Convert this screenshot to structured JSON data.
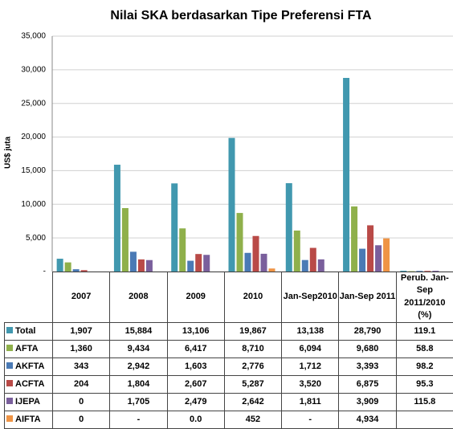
{
  "chart_data": {
    "type": "bar",
    "title": "Nilai SKA berdasarkan Tipe Preferensi FTA",
    "y_label": "US$ juta",
    "categories": [
      "2007",
      "2008",
      "2009",
      "2010",
      "Jan-Sep2010",
      "Jan-Sep 2011",
      "Perub. Jan-Sep 2011/2010 (%)"
    ],
    "series": [
      {
        "name": "Total",
        "color": "#4198af",
        "values": [
          1907,
          15884,
          13106,
          19867,
          13138,
          28790,
          119.1
        ],
        "value_labels": [
          "1,907",
          "15,884",
          "13,106",
          "19,867",
          "13,138",
          "28,790",
          "119.1"
        ]
      },
      {
        "name": "AFTA",
        "color": "#8fb04b",
        "values": [
          1360,
          9434,
          6417,
          8710,
          6094,
          9680,
          58.8
        ],
        "value_labels": [
          "1,360",
          "9,434",
          "6,417",
          "8,710",
          "6,094",
          "9,680",
          "58.8"
        ]
      },
      {
        "name": "AKFTA",
        "color": "#4a7ab5",
        "values": [
          343,
          2942,
          1603,
          2776,
          1712,
          3393,
          98.2
        ],
        "value_labels": [
          "343",
          "2,942",
          "1,603",
          "2,776",
          "1,712",
          "3,393",
          "98.2"
        ]
      },
      {
        "name": "ACFTA",
        "color": "#b94a47",
        "values": [
          204,
          1804,
          2607,
          5287,
          3520,
          6875,
          95.3
        ],
        "value_labels": [
          "204",
          "1,804",
          "2,607",
          "5,287",
          "3,520",
          "6,875",
          "95.3"
        ]
      },
      {
        "name": "IJEPA",
        "color": "#7a5f9c",
        "values": [
          0,
          1705,
          2479,
          2642,
          1811,
          3909,
          115.8
        ],
        "value_labels": [
          "0",
          "1,705",
          "2,479",
          "2,642",
          "1,811",
          "3,909",
          "115.8"
        ]
      },
      {
        "name": "AIFTA",
        "color": "#ef9445",
        "values": [
          0,
          null,
          0,
          452,
          null,
          4934,
          null
        ],
        "value_labels": [
          "0",
          "-",
          "0.0",
          "452",
          "-",
          "4,934",
          null
        ]
      }
    ],
    "ylim": [
      0,
      35000
    ],
    "yticks": [
      {
        "value": 0,
        "label": "-"
      },
      {
        "value": 5000,
        "label": "5,000"
      },
      {
        "value": 10000,
        "label": "10,000"
      },
      {
        "value": 15000,
        "label": "15,000"
      },
      {
        "value": 20000,
        "label": "20,000"
      },
      {
        "value": 25000,
        "label": "25,000"
      },
      {
        "value": 30000,
        "label": "30,000"
      },
      {
        "value": 35000,
        "label": "35,000"
      }
    ],
    "grid": true
  }
}
